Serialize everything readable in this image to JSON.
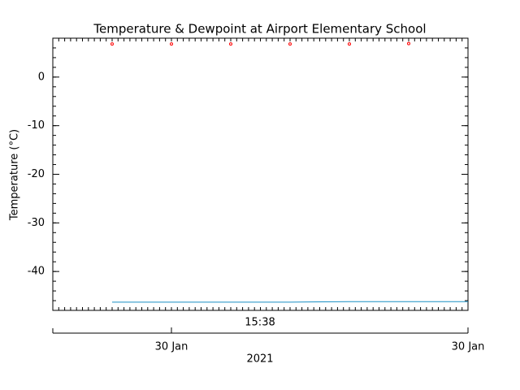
{
  "chart_data": {
    "type": "line",
    "title": "Temperature & Dewpoint at Airport Elementary School",
    "y_label": "Temperature (°C)",
    "x_label": "15:38",
    "x2_label": "2021",
    "xlim": [
      0,
      7
    ],
    "x2ticks": [
      {
        "value": 2,
        "label": "30 Jan"
      },
      {
        "value": 7,
        "label": "30 Jan"
      }
    ],
    "ylim": [
      -48,
      8
    ],
    "yticks": [
      -40,
      -30,
      -20,
      -10,
      0
    ],
    "series": [
      {
        "color": "#ff0000",
        "marker": true,
        "x": [
          1,
          2,
          3,
          4,
          5,
          6
        ],
        "values": [
          6.8,
          6.8,
          6.8,
          6.8,
          6.8,
          6.9
        ]
      },
      {
        "color": "#1a8fc4",
        "marker": false,
        "x": [
          1,
          2,
          3,
          4,
          5,
          6,
          7
        ],
        "values": [
          -46.3,
          -46.3,
          -46.3,
          -46.3,
          -46.2,
          -46.2,
          -46.2
        ]
      }
    ]
  }
}
